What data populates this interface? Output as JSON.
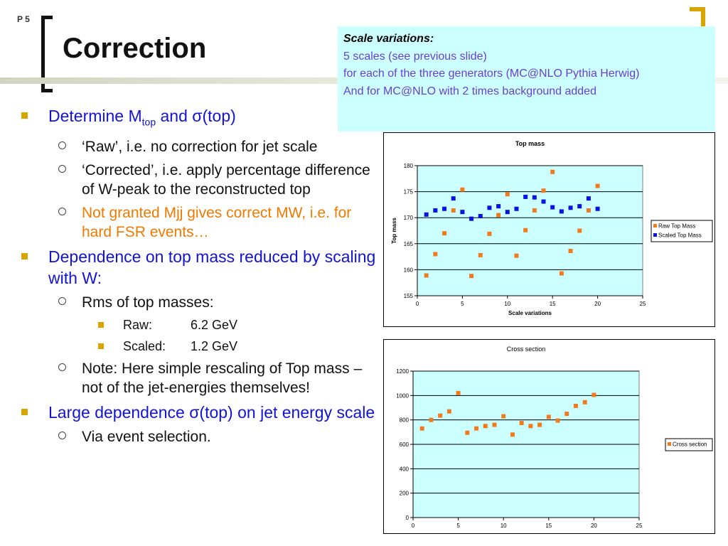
{
  "slide": {
    "number": "P 5",
    "title": "Correction"
  },
  "info_box": {
    "heading": "Scale variations:",
    "lines": [
      "5 scales (see previous slide)",
      "for each of the three generators (MC@NLO Pythia Herwig)",
      "And for MC@NLO with 2 times background added"
    ]
  },
  "bullets": {
    "b1_main": "Determine M",
    "b1_sub": "top",
    "b1_rest": " and σ(top)",
    "b1_s1": "‘Raw’, i.e. no correction for jet scale",
    "b1_s2": "‘Corrected’, i.e. apply percentage difference of W-peak to the reconstructed top",
    "b1_s3": "Not granted Mjj gives correct MW, i.e. for hard FSR events…",
    "b2_main": "Dependence on top mass reduced by scaling with W:",
    "b2_s1": "Rms of top masses:",
    "b2_raw_label": "Raw:",
    "b2_raw_value": "6.2 GeV",
    "b2_scaled_label": "Scaled:",
    "b2_scaled_value": "1.2 GeV",
    "b2_s2": "Note: Here simple rescaling of Top mass – not of the jet-energies themselves!",
    "b3_main": "Large dependence σ(top) on jet energy scale",
    "b3_s1": "Via event selection."
  },
  "colors": {
    "accent": "#d9a400",
    "bullet_blue": "#1313d6",
    "orange_text": "#f07a00",
    "info_text": "#6a3fd6",
    "plot_bg": "#ccffff",
    "raw_series": "#f07a1c",
    "scaled_series": "#0a10e8"
  },
  "chart_data": [
    {
      "type": "scatter",
      "title": "Top mass",
      "xlabel": "Scale variations",
      "ylabel": "Top mass",
      "xlim": [
        0,
        25
      ],
      "ylim": [
        155,
        180
      ],
      "xticks": [
        0,
        5,
        10,
        15,
        20,
        25
      ],
      "yticks": [
        155,
        160,
        165,
        170,
        175,
        180
      ],
      "grid": "horizontal",
      "legend": "right",
      "series": [
        {
          "name": "Raw Top Mass",
          "color": "#f07a1c",
          "x": [
            1,
            2,
            3,
            4,
            5,
            6,
            7,
            8,
            9,
            10,
            11,
            12,
            13,
            14,
            15,
            16,
            17,
            18,
            19,
            20
          ],
          "y": [
            158.9,
            163.0,
            167.0,
            171.4,
            175.4,
            158.8,
            162.8,
            166.9,
            170.5,
            174.5,
            162.7,
            167.6,
            171.4,
            175.2,
            178.8,
            159.3,
            163.6,
            167.5,
            171.4,
            176.1
          ]
        },
        {
          "name": "Scaled Top Mass",
          "color": "#0a10e8",
          "x": [
            1,
            2,
            3,
            4,
            5,
            6,
            7,
            8,
            9,
            10,
            11,
            12,
            13,
            14,
            15,
            16,
            17,
            18,
            19,
            20
          ],
          "y": [
            170.6,
            171.4,
            171.7,
            173.7,
            171.1,
            169.8,
            170.3,
            171.9,
            172.2,
            171.1,
            171.7,
            174.0,
            173.9,
            173.1,
            172.0,
            171.2,
            171.9,
            172.2,
            173.7,
            171.7
          ]
        }
      ]
    },
    {
      "type": "scatter",
      "title": "Cross section",
      "xlim": [
        0,
        25
      ],
      "ylim": [
        0,
        1200
      ],
      "xticks": [
        0,
        5,
        10,
        15,
        20,
        25
      ],
      "yticks": [
        0,
        200,
        400,
        600,
        800,
        1000,
        1200
      ],
      "grid": "horizontal",
      "legend": "right",
      "series": [
        {
          "name": "Cross section",
          "color": "#f07a1c",
          "x": [
            1,
            2,
            3,
            4,
            5,
            6,
            7,
            8,
            9,
            10,
            11,
            12,
            13,
            14,
            15,
            16,
            17,
            18,
            19,
            20
          ],
          "y": [
            730,
            800,
            835,
            870,
            1020,
            695,
            730,
            750,
            760,
            830,
            680,
            775,
            750,
            760,
            825,
            795,
            850,
            915,
            945,
            1005
          ]
        }
      ]
    }
  ]
}
